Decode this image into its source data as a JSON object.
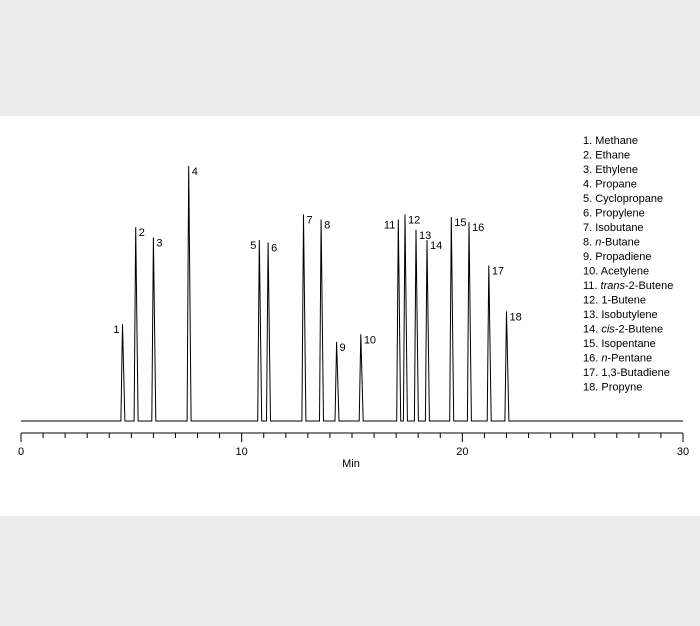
{
  "chart_data": {
    "type": "line",
    "xlabel": "Min",
    "xlim": [
      0,
      30
    ],
    "x_ticks": [
      0,
      10,
      20,
      30
    ],
    "x_minor_step": 1,
    "line_color": "#000000",
    "peaks": [
      {
        "id": "1",
        "rt": 4.6,
        "height": 0.38,
        "compound": "Methane"
      },
      {
        "id": "2",
        "rt": 5.2,
        "height": 0.76,
        "compound": "Ethane"
      },
      {
        "id": "3",
        "rt": 6.0,
        "height": 0.72,
        "compound": "Ethylene"
      },
      {
        "id": "4",
        "rt": 7.6,
        "height": 1.0,
        "compound": "Propane"
      },
      {
        "id": "5",
        "rt": 10.8,
        "height": 0.71,
        "compound": "Cyclopropane"
      },
      {
        "id": "6",
        "rt": 11.2,
        "height": 0.7,
        "compound": "Propylene"
      },
      {
        "id": "7",
        "rt": 12.8,
        "height": 0.81,
        "compound": "Isobutane"
      },
      {
        "id": "8",
        "rt": 13.6,
        "height": 0.79,
        "compound": "n-Butane",
        "prefix": "n",
        "rest": "-Butane"
      },
      {
        "id": "9",
        "rt": 14.3,
        "height": 0.31,
        "compound": "Propadiene"
      },
      {
        "id": "10",
        "rt": 15.4,
        "height": 0.34,
        "compound": "Acetylene"
      },
      {
        "id": "11",
        "rt": 17.1,
        "height": 0.79,
        "compound": "trans-2-Butene",
        "prefix": "trans",
        "rest": "-2-Butene"
      },
      {
        "id": "12",
        "rt": 17.4,
        "height": 0.81,
        "compound": "1-Butene"
      },
      {
        "id": "13",
        "rt": 17.9,
        "height": 0.75,
        "compound": "Isobutylene"
      },
      {
        "id": "14",
        "rt": 18.4,
        "height": 0.71,
        "compound": "cis-2-Butene",
        "prefix": "cis",
        "rest": "-2-Butene"
      },
      {
        "id": "15",
        "rt": 19.5,
        "height": 0.8,
        "compound": "Isopentane"
      },
      {
        "id": "16",
        "rt": 20.3,
        "height": 0.78,
        "compound": "n-Pentane",
        "prefix": "n",
        "rest": "-Pentane"
      },
      {
        "id": "17",
        "rt": 21.2,
        "height": 0.61,
        "compound": "1,3-Butadiene"
      },
      {
        "id": "18",
        "rt": 22.0,
        "height": 0.43,
        "compound": "Propyne"
      }
    ]
  }
}
